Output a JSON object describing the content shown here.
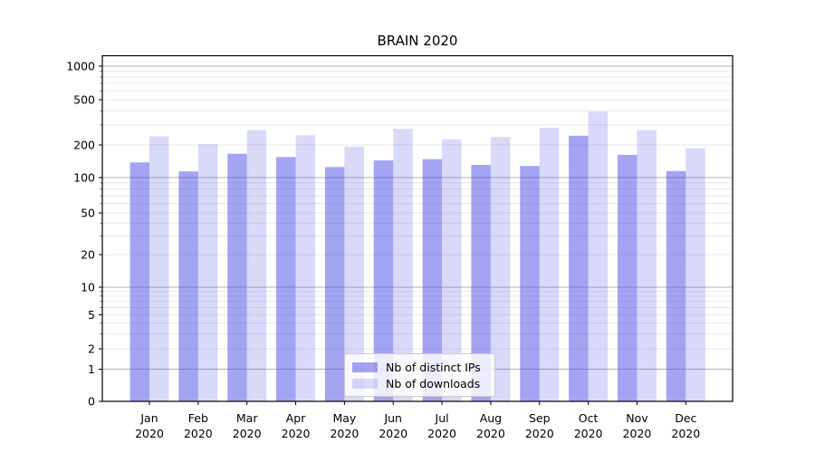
{
  "chart_data": {
    "type": "bar",
    "title": "BRAIN 2020",
    "categories": [
      "Jan 2020",
      "Feb 2020",
      "Mar 2020",
      "Apr 2020",
      "May 2020",
      "Jun 2020",
      "Jul 2020",
      "Aug 2020",
      "Sep 2020",
      "Oct 2020",
      "Nov 2020",
      "Dec 2020"
    ],
    "series": [
      {
        "name": "Nb of distinct IPs",
        "color": "rgba(64,64,230,0.48)",
        "values": [
          138,
          114,
          166,
          155,
          125,
          144,
          148,
          131,
          128,
          241,
          162,
          115
        ]
      },
      {
        "name": "Nb of downloads",
        "color": "rgba(64,64,230,0.20)",
        "values": [
          238,
          203,
          270,
          243,
          193,
          277,
          224,
          235,
          283,
          392,
          270,
          186
        ]
      }
    ],
    "xlabel": "",
    "ylabel": "",
    "yscale": "log-like with 0 baseline",
    "y_ticks": [
      0,
      1,
      2,
      5,
      10,
      20,
      50,
      100,
      200,
      500,
      1000
    ],
    "ylim": [
      0,
      1000
    ],
    "grid": true,
    "legend_position": "lower center"
  },
  "colors": {
    "bar_distinct_ips": "rgba(64,64,230,0.48)",
    "bar_downloads": "rgba(64,64,230,0.20)",
    "grid_major": "#b2b2b2",
    "grid_minor": "#e8e8e8",
    "axis": "#000000",
    "legend_border": "#cccccc"
  }
}
